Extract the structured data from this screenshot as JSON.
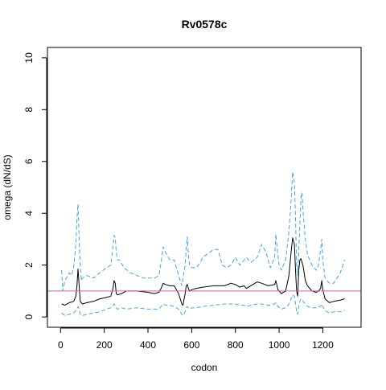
{
  "chart_data": {
    "type": "line",
    "title": "Rv0578c",
    "xlabel": "codon",
    "ylabel": "omega (dN/dS)",
    "xlim": [
      -60,
      1375
    ],
    "ylim": [
      -0.4,
      10.4
    ],
    "x_ticks": [
      0,
      200,
      400,
      600,
      800,
      1000,
      1200
    ],
    "x_tick_labels": [
      "0",
      "200",
      "400",
      "600",
      "800",
      "1000",
      "1200"
    ],
    "y_ticks": [
      0,
      2,
      4,
      6,
      8,
      10
    ],
    "y_tick_labels": [
      "0",
      "2",
      "4",
      "6",
      "8",
      "10"
    ],
    "grid": false,
    "legend": "none",
    "reference_line": {
      "y": 1.0,
      "color": "#d15fb0"
    },
    "series": [
      {
        "style": "solid",
        "color": "#000000",
        "x": [
          5,
          20,
          40,
          60,
          70,
          75,
          80,
          85,
          90,
          100,
          120,
          150,
          180,
          210,
          230,
          240,
          245,
          250,
          255,
          260,
          280,
          300,
          350,
          400,
          430,
          450,
          460,
          470,
          480,
          500,
          520,
          540,
          555,
          560,
          570,
          575,
          580,
          585,
          590,
          600,
          620,
          650,
          700,
          750,
          780,
          800,
          820,
          840,
          850,
          870,
          900,
          920,
          950,
          980,
          985,
          995,
          1010,
          1030,
          1045,
          1055,
          1062,
          1070,
          1075,
          1080,
          1085,
          1090,
          1095,
          1100,
          1110,
          1120,
          1130,
          1150,
          1170,
          1180,
          1190,
          1195,
          1200,
          1210,
          1230,
          1250,
          1280,
          1300
        ],
        "y": [
          0.5,
          0.45,
          0.55,
          0.6,
          0.8,
          1.2,
          1.85,
          1.2,
          0.6,
          0.5,
          0.55,
          0.6,
          0.7,
          0.75,
          0.8,
          1.1,
          1.4,
          1.3,
          0.9,
          0.85,
          0.9,
          1.0,
          1.0,
          0.95,
          0.9,
          0.95,
          1.1,
          1.3,
          1.25,
          1.2,
          1.2,
          0.9,
          0.5,
          0.45,
          0.9,
          1.2,
          1.25,
          1.1,
          1.0,
          1.05,
          1.1,
          1.15,
          1.2,
          1.2,
          1.3,
          1.25,
          1.15,
          1.2,
          1.1,
          1.2,
          1.35,
          1.3,
          1.2,
          1.25,
          1.4,
          1.05,
          0.9,
          1.0,
          1.6,
          2.5,
          3.05,
          2.8,
          1.8,
          1.0,
          0.8,
          1.8,
          2.2,
          2.25,
          1.95,
          1.4,
          1.2,
          1.0,
          0.95,
          1.0,
          1.1,
          1.4,
          1.05,
          0.7,
          0.55,
          0.6,
          0.65,
          0.7
        ]
      },
      {
        "style": "dashed",
        "color": "#4aa3df",
        "x": [
          5,
          10,
          20,
          40,
          50,
          60,
          70,
          75,
          80,
          85,
          90,
          95,
          100,
          120,
          150,
          180,
          210,
          230,
          240,
          245,
          250,
          255,
          260,
          270,
          290,
          320,
          350,
          380,
          400,
          430,
          450,
          460,
          470,
          480,
          500,
          520,
          540,
          555,
          560,
          570,
          575,
          580,
          585,
          590,
          600,
          620,
          640,
          650,
          700,
          720,
          740,
          760,
          780,
          800,
          820,
          840,
          850,
          870,
          900,
          920,
          940,
          960,
          980,
          985,
          990,
          1000,
          1010,
          1030,
          1045,
          1055,
          1062,
          1070,
          1075,
          1080,
          1085,
          1090,
          1095,
          1100,
          1105,
          1110,
          1120,
          1130,
          1150,
          1170,
          1180,
          1190,
          1195,
          1200,
          1210,
          1230,
          1250,
          1280,
          1300
        ],
        "y": [
          1.8,
          1.0,
          1.4,
          1.7,
          1.6,
          1.9,
          2.8,
          3.8,
          4.35,
          3.0,
          2.0,
          1.4,
          1.5,
          1.6,
          1.5,
          1.7,
          1.9,
          2.0,
          2.7,
          3.15,
          3.05,
          2.5,
          2.2,
          2.2,
          1.9,
          1.7,
          1.6,
          1.5,
          1.5,
          1.5,
          1.6,
          2.1,
          2.7,
          2.5,
          2.2,
          2.2,
          1.6,
          1.2,
          1.5,
          2.0,
          2.6,
          3.1,
          2.4,
          2.0,
          1.9,
          1.9,
          2.1,
          2.3,
          2.6,
          2.6,
          2.0,
          1.9,
          2.0,
          2.3,
          2.0,
          2.2,
          2.3,
          2.1,
          2.3,
          2.8,
          2.5,
          1.9,
          2.3,
          3.2,
          2.7,
          2.0,
          1.8,
          2.2,
          3.3,
          4.5,
          5.6,
          5.2,
          3.8,
          2.0,
          1.6,
          2.5,
          3.6,
          4.6,
          4.8,
          4.0,
          3.0,
          2.4,
          2.0,
          1.8,
          2.0,
          2.6,
          3.0,
          2.2,
          1.5,
          1.3,
          1.3,
          1.7,
          2.2
        ]
      },
      {
        "style": "dashed",
        "color": "#4aa3df",
        "x": [
          5,
          20,
          40,
          60,
          70,
          75,
          80,
          85,
          90,
          100,
          120,
          150,
          180,
          210,
          230,
          240,
          245,
          250,
          255,
          260,
          280,
          300,
          350,
          400,
          430,
          450,
          460,
          470,
          480,
          500,
          520,
          540,
          555,
          560,
          570,
          575,
          580,
          585,
          590,
          600,
          620,
          650,
          700,
          750,
          780,
          800,
          820,
          840,
          850,
          870,
          900,
          920,
          950,
          980,
          985,
          995,
          1010,
          1030,
          1045,
          1055,
          1062,
          1070,
          1075,
          1080,
          1085,
          1090,
          1095,
          1100,
          1110,
          1120,
          1130,
          1150,
          1170,
          1180,
          1190,
          1195,
          1200,
          1210,
          1230,
          1250,
          1280,
          1300
        ],
        "y": [
          0.15,
          0.05,
          0.1,
          0.15,
          0.25,
          0.3,
          0.4,
          0.3,
          0.1,
          0.05,
          0.1,
          0.15,
          0.2,
          0.3,
          0.35,
          0.4,
          0.5,
          0.45,
          0.35,
          0.3,
          0.35,
          0.3,
          0.35,
          0.3,
          0.3,
          0.3,
          0.4,
          0.5,
          0.45,
          0.45,
          0.4,
          0.3,
          0.1,
          0.05,
          0.2,
          0.35,
          0.4,
          0.35,
          0.3,
          0.35,
          0.35,
          0.4,
          0.45,
          0.5,
          0.5,
          0.5,
          0.45,
          0.45,
          0.4,
          0.45,
          0.5,
          0.5,
          0.45,
          0.5,
          0.55,
          0.4,
          0.3,
          0.35,
          0.5,
          0.7,
          0.85,
          0.8,
          0.5,
          0.2,
          0.1,
          0.4,
          0.6,
          0.7,
          0.6,
          0.5,
          0.4,
          0.35,
          0.35,
          0.4,
          0.4,
          0.5,
          0.4,
          0.25,
          0.15,
          0.2,
          0.2,
          0.25
        ]
      }
    ]
  }
}
